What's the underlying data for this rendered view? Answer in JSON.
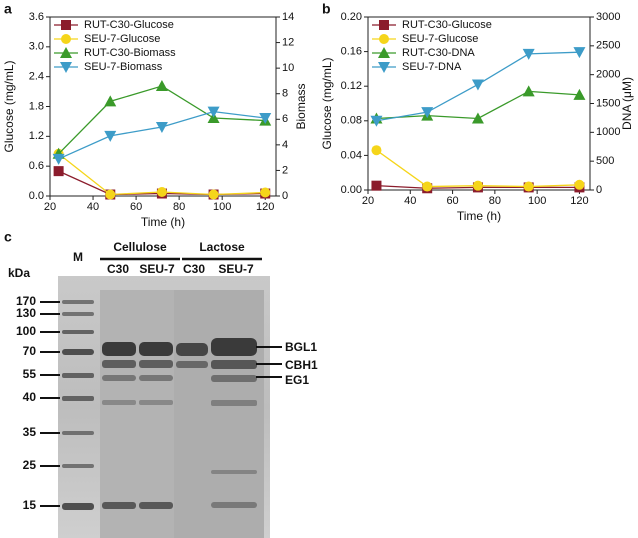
{
  "chart_data": [
    {
      "type": "line",
      "panel": "a",
      "x_label": "Time (h)",
      "y_label": "Glucose (mg/mL)",
      "y2_label": "Biomass",
      "x": [
        24,
        48,
        72,
        96,
        120
      ],
      "xlim": [
        20,
        125
      ],
      "xticks": [
        20,
        40,
        60,
        80,
        100,
        120
      ],
      "ylim": [
        0,
        3.6
      ],
      "yticks": [
        {
          "value": 0,
          "label": "0.0"
        },
        0.6,
        1.2,
        1.8,
        2.4,
        {
          "value": 3,
          "label": "3.0"
        },
        3.6
      ],
      "y2lim": [
        0,
        14
      ],
      "y2ticks": [
        0,
        2,
        4,
        6,
        8,
        10,
        12,
        14
      ],
      "legend": "upper-left",
      "series": [
        {
          "name": "RUT-C30-Glucose",
          "color": "#8b1c2c",
          "marker": "square",
          "values": [
            0.5,
            0.03,
            0.05,
            0.03,
            0.05
          ]
        },
        {
          "name": "SEU-7-Glucose",
          "color": "#f5d51a",
          "marker": "circle",
          "values": [
            0.85,
            0.03,
            0.08,
            0.03,
            0.07
          ]
        },
        {
          "name": "RUT-C30-Biomass",
          "color": "#3a9a2a",
          "marker": "triangle-up",
          "axis": "y2",
          "values": [
            3.3,
            7.4,
            8.6,
            6.1,
            5.9
          ]
        },
        {
          "name": "SEU-7-Biomass",
          "color": "#3d9cc8",
          "marker": "triangle-down",
          "axis": "y2",
          "values": [
            2.9,
            4.7,
            5.4,
            6.6,
            6.1
          ]
        }
      ]
    },
    {
      "type": "line",
      "panel": "b",
      "x_label": "Time (h)",
      "y_label": "Glucose (mg/mL)",
      "y2_label": "DNA (μM)",
      "x": [
        24,
        48,
        72,
        96,
        120
      ],
      "xlim": [
        20,
        125
      ],
      "xticks": [
        20,
        40,
        60,
        80,
        100,
        120
      ],
      "ylim": [
        0,
        0.2
      ],
      "yticks": [
        {
          "value": 0,
          "label": "0.00"
        },
        0.04,
        0.08,
        0.12,
        0.16,
        {
          "value": 0.2,
          "label": "0.20"
        }
      ],
      "y2lim": [
        0,
        3000
      ],
      "y2ticks": [
        0,
        500,
        1000,
        1500,
        2000,
        2500,
        3000
      ],
      "legend": "upper-left",
      "series": [
        {
          "name": "RUT-C30-Glucose",
          "color": "#8b1c2c",
          "marker": "square",
          "values": [
            0.005,
            0.002,
            0.003,
            0.003,
            0.003
          ]
        },
        {
          "name": "SEU-7-Glucose",
          "color": "#f5d51a",
          "marker": "circle",
          "values": [
            0.046,
            0.004,
            0.005,
            0.004,
            0.006
          ]
        },
        {
          "name": "RUT-C30-DNA",
          "color": "#3a9a2a",
          "marker": "triangle-up",
          "axis": "y2",
          "values": [
            1240,
            1290,
            1240,
            1710,
            1650
          ]
        },
        {
          "name": "SEU-7-DNA",
          "color": "#3d9cc8",
          "marker": "triangle-down",
          "axis": "y2",
          "values": [
            1200,
            1350,
            1830,
            2360,
            2390
          ]
        }
      ]
    }
  ],
  "gel": {
    "panel": "c",
    "unit": "kDa",
    "marker_lane": "M",
    "groups": [
      {
        "name": "Cellulose",
        "lanes": [
          "C30",
          "SEU-7"
        ]
      },
      {
        "name": "Lactose",
        "lanes": [
          "C30",
          "SEU-7"
        ]
      }
    ],
    "ladder": [
      "170",
      "130",
      "100",
      "70",
      "55",
      "40",
      "35",
      "25",
      "15"
    ],
    "bands": [
      "BGL1",
      "CBH1",
      "EG1"
    ]
  }
}
